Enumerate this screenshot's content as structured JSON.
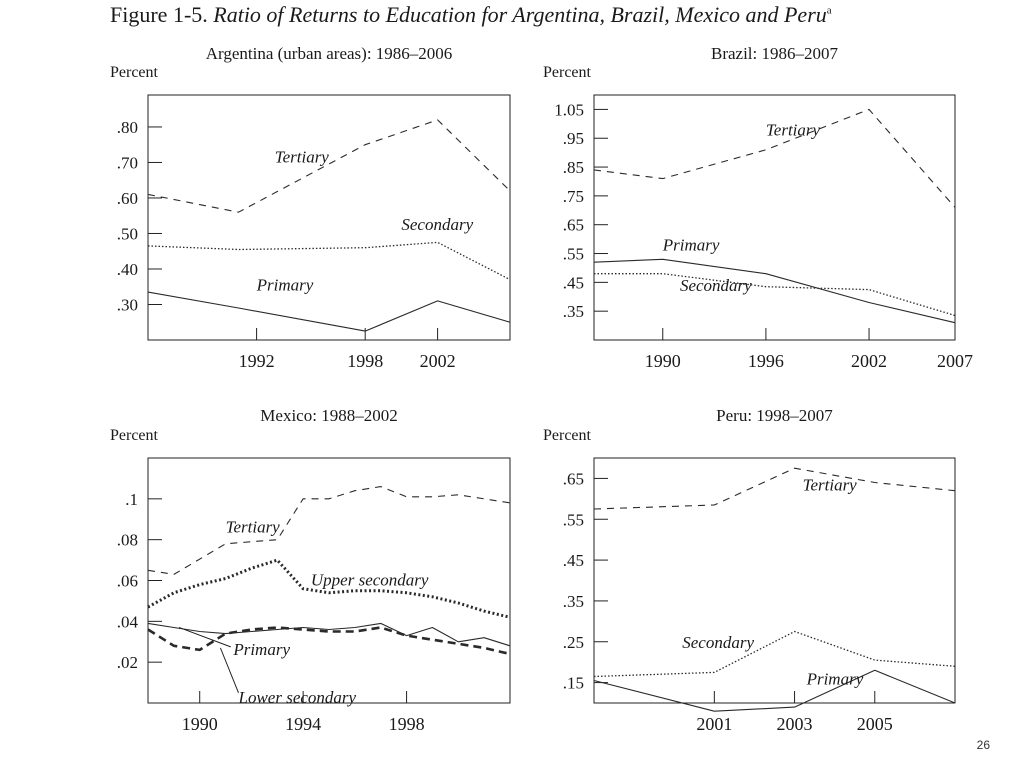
{
  "figure": {
    "label": "Figure 1-5.",
    "title": "Ratio of Returns to Education for Argentina, Brazil, Mexico and Peru",
    "footnote_marker": "a"
  },
  "page_number": "26",
  "chart_data": [
    {
      "type": "line",
      "title": "Argentina (urban areas): 1986–2006",
      "ylabel": "Percent",
      "xlim": [
        1986,
        2006
      ],
      "ylim": [
        0.2,
        0.89
      ],
      "xticks": [
        1992,
        1998,
        2002
      ],
      "yticks": [
        0.3,
        0.4,
        0.5,
        0.6,
        0.7,
        0.8
      ],
      "ytick_labels": [
        ".30",
        ".40",
        ".50",
        ".60",
        ".70",
        ".80"
      ],
      "series": [
        {
          "name": "Tertiary",
          "style": "dashed",
          "x": [
            1986,
            1991,
            1998,
            2002,
            2006
          ],
          "y": [
            0.61,
            0.56,
            0.75,
            0.82,
            0.62
          ]
        },
        {
          "name": "Secondary",
          "style": "dotted",
          "x": [
            1986,
            1991,
            1998,
            2002,
            2006
          ],
          "y": [
            0.465,
            0.455,
            0.46,
            0.475,
            0.37
          ]
        },
        {
          "name": "Primary",
          "style": "solid",
          "x": [
            1986,
            1991,
            1998,
            2002,
            2006
          ],
          "y": [
            0.335,
            0.29,
            0.225,
            0.31,
            0.25
          ]
        }
      ],
      "annotations": [
        {
          "text": "Tertiary",
          "x": 1993,
          "y": 0.7
        },
        {
          "text": "Secondary",
          "x": 2000,
          "y": 0.51
        },
        {
          "text": "Primary",
          "x": 1992,
          "y": 0.34
        }
      ]
    },
    {
      "type": "line",
      "title": "Brazil: 1986–2007",
      "ylabel": "Percent",
      "xlim": [
        1986,
        2007
      ],
      "ylim": [
        0.25,
        1.1
      ],
      "xticks": [
        1990,
        1996,
        2002,
        2007
      ],
      "yticks": [
        0.35,
        0.45,
        0.55,
        0.65,
        0.75,
        0.85,
        0.95,
        1.05
      ],
      "ytick_labels": [
        ".35",
        ".45",
        ".55",
        ".65",
        ".75",
        ".85",
        ".95",
        "1.05"
      ],
      "series": [
        {
          "name": "Tertiary",
          "style": "dashed",
          "x": [
            1986,
            1990,
            1996,
            2002,
            2007
          ],
          "y": [
            0.84,
            0.81,
            0.91,
            1.05,
            0.71
          ]
        },
        {
          "name": "Primary",
          "style": "solid",
          "x": [
            1986,
            1990,
            1996,
            2002,
            2007
          ],
          "y": [
            0.52,
            0.53,
            0.48,
            0.38,
            0.31
          ]
        },
        {
          "name": "Secondary",
          "style": "dotted",
          "x": [
            1986,
            1990,
            1996,
            2002,
            2007
          ],
          "y": [
            0.48,
            0.48,
            0.435,
            0.425,
            0.335
          ]
        }
      ],
      "annotations": [
        {
          "text": "Tertiary",
          "x": 1996,
          "y": 0.96
        },
        {
          "text": "Primary",
          "x": 1990,
          "y": 0.56
        },
        {
          "text": "Secondary",
          "x": 1991,
          "y": 0.42
        }
      ]
    },
    {
      "type": "line",
      "title": "Mexico: 1988–2002",
      "ylabel": "Percent",
      "xlim": [
        1988,
        2002
      ],
      "ylim": [
        0.0,
        0.12
      ],
      "xticks": [
        1990,
        1994,
        1998
      ],
      "yticks": [
        0.02,
        0.04,
        0.06,
        0.08,
        0.1
      ],
      "ytick_labels": [
        ".02",
        ".04",
        ".06",
        ".08",
        ".1"
      ],
      "series": [
        {
          "name": "Tertiary",
          "style": "dashed",
          "x": [
            1988,
            1989,
            1991,
            1992,
            1993,
            1994,
            1995,
            1996,
            1997,
            1998,
            1999,
            2000,
            2001,
            2002
          ],
          "y": [
            0.065,
            0.063,
            0.078,
            0.079,
            0.08,
            0.1,
            0.1,
            0.104,
            0.106,
            0.101,
            0.101,
            0.102,
            0.1,
            0.098
          ]
        },
        {
          "name": "Upper secondary",
          "style": "dotted-bold",
          "x": [
            1988,
            1989,
            1990,
            1991,
            1992,
            1993,
            1994,
            1995,
            1996,
            1997,
            1998,
            1999,
            2000,
            2001,
            2002
          ],
          "y": [
            0.047,
            0.054,
            0.058,
            0.061,
            0.066,
            0.07,
            0.056,
            0.054,
            0.055,
            0.055,
            0.054,
            0.052,
            0.049,
            0.045,
            0.042
          ]
        },
        {
          "name": "Primary",
          "style": "solid",
          "x": [
            1988,
            1989,
            1990,
            1991,
            1992,
            1993,
            1994,
            1995,
            1996,
            1997,
            1998,
            1999,
            2000,
            2001,
            2002
          ],
          "y": [
            0.039,
            0.037,
            0.035,
            0.034,
            0.035,
            0.036,
            0.037,
            0.036,
            0.037,
            0.039,
            0.033,
            0.037,
            0.03,
            0.032,
            0.028
          ]
        },
        {
          "name": "Lower secondary",
          "style": "dashed-bold",
          "x": [
            1988,
            1989,
            1990,
            1991,
            1992,
            1993,
            1994,
            1995,
            1996,
            1997,
            1998,
            1999,
            2000,
            2001,
            2002
          ],
          "y": [
            0.036,
            0.028,
            0.026,
            0.034,
            0.036,
            0.037,
            0.036,
            0.035,
            0.035,
            0.037,
            0.033,
            0.031,
            0.029,
            0.027,
            0.024
          ]
        }
      ],
      "annotations": [
        {
          "text": "Tertiary",
          "x": 1991,
          "y": 0.0835
        },
        {
          "text": "Upper secondary",
          "x": 1994.3,
          "y": 0.0575
        },
        {
          "text": "Primary",
          "x": 1991.3,
          "y": 0.0235
        },
        {
          "text": "Lower secondary",
          "x": 1991.5,
          "y": 0.0
        }
      ]
    },
    {
      "type": "line",
      "title": "Peru: 1998–2007",
      "ylabel": "Percent",
      "xlim": [
        1998,
        2007
      ],
      "ylim": [
        0.1,
        0.7
      ],
      "xticks": [
        2001,
        2003,
        2005
      ],
      "yticks": [
        0.15,
        0.25,
        0.35,
        0.45,
        0.55,
        0.65
      ],
      "ytick_labels": [
        ".15",
        ".25",
        ".35",
        ".45",
        ".55",
        ".65"
      ],
      "series": [
        {
          "name": "Tertiary",
          "style": "dashed",
          "x": [
            1998,
            2001,
            2003,
            2005,
            2007
          ],
          "y": [
            0.575,
            0.585,
            0.675,
            0.64,
            0.62
          ]
        },
        {
          "name": "Secondary",
          "style": "dotted",
          "x": [
            1998,
            2001,
            2003,
            2005,
            2007
          ],
          "y": [
            0.165,
            0.175,
            0.275,
            0.205,
            0.19
          ]
        },
        {
          "name": "Primary",
          "style": "solid",
          "x": [
            1998,
            2001,
            2003,
            2005,
            2007
          ],
          "y": [
            0.155,
            0.08,
            0.09,
            0.18,
            0.1
          ]
        }
      ],
      "annotations": [
        {
          "text": "Tertiary",
          "x": 2003.2,
          "y": 0.62
        },
        {
          "text": "Secondary",
          "x": 2000.2,
          "y": 0.235
        },
        {
          "text": "Primary",
          "x": 2003.3,
          "y": 0.145
        }
      ]
    }
  ]
}
